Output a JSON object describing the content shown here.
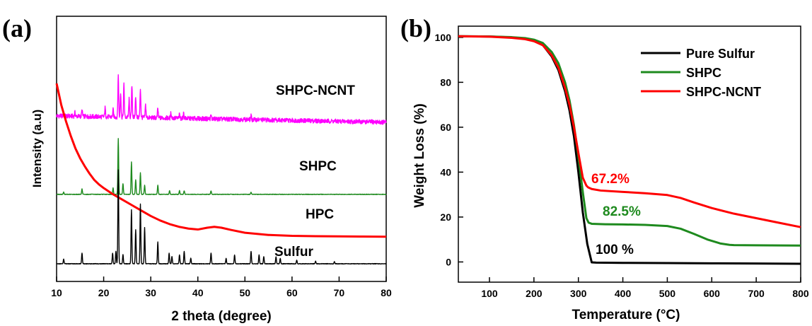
{
  "chart_data": [
    {
      "panel_label": "(a)",
      "type": "line",
      "xlabel": "2 theta (degree)",
      "ylabel": "Intensity (a.u)",
      "xlim": [
        10,
        80
      ],
      "x_ticks": [
        10,
        20,
        30,
        40,
        50,
        60,
        70,
        80
      ],
      "y_ticks_shown": false,
      "grid": false,
      "series": [
        {
          "name": "SHPC-NCNT",
          "color": "#ff00ff",
          "baseline": 0.82,
          "decay": 0.0005,
          "noise": 0.0125,
          "peaks": [
            [
              11.5,
              0.015
            ],
            [
              13.9,
              0.02
            ],
            [
              15.4,
              0.035
            ],
            [
              20.3,
              0.05
            ],
            [
              22.0,
              0.04
            ],
            [
              23.1,
              0.23
            ],
            [
              23.6,
              0.14
            ],
            [
              24.3,
              0.18
            ],
            [
              25.4,
              0.1
            ],
            [
              26.0,
              0.18
            ],
            [
              26.8,
              0.12
            ],
            [
              27.8,
              0.16
            ],
            [
              28.9,
              0.07
            ],
            [
              31.5,
              0.05
            ],
            [
              34.3,
              0.03
            ],
            [
              36.1,
              0.02
            ],
            [
              37.0,
              0.03
            ],
            [
              42.8,
              0.02
            ],
            [
              51.3,
              0.02
            ],
            [
              56.5,
              0.015
            ]
          ]
        },
        {
          "name": "SHPC",
          "color": "#1e8a1e",
          "baseline": 0.385,
          "decay": 0,
          "noise": 0.0015,
          "peaks": [
            [
              11.5,
              0.012
            ],
            [
              15.4,
              0.03
            ],
            [
              22.0,
              0.035
            ],
            [
              23.1,
              0.31
            ],
            [
              24.1,
              0.06
            ],
            [
              25.9,
              0.18
            ],
            [
              26.8,
              0.08
            ],
            [
              27.8,
              0.12
            ],
            [
              28.7,
              0.05
            ],
            [
              31.5,
              0.05
            ],
            [
              34.0,
              0.02
            ],
            [
              36.1,
              0.02
            ],
            [
              37.1,
              0.02
            ],
            [
              42.8,
              0.02
            ],
            [
              51.3,
              0.012
            ]
          ]
        },
        {
          "name": "HPC",
          "color": "#ff0000",
          "x": [
            10,
            11,
            12,
            13,
            14,
            15,
            16,
            17,
            18,
            19,
            20,
            22,
            24,
            26,
            28,
            30,
            32,
            34,
            36,
            38,
            40,
            42,
            43.5,
            45,
            47,
            50,
            55,
            60,
            65,
            70,
            75,
            80
          ],
          "y": [
            1.0,
            0.88,
            0.79,
            0.71,
            0.64,
            0.585,
            0.54,
            0.5,
            0.465,
            0.44,
            0.42,
            0.385,
            0.355,
            0.325,
            0.295,
            0.265,
            0.24,
            0.22,
            0.205,
            0.195,
            0.19,
            0.2,
            0.205,
            0.2,
            0.188,
            0.172,
            0.16,
            0.155,
            0.153,
            0.152,
            0.151,
            0.15
          ]
        },
        {
          "name": "Sulfur",
          "color": "#000000",
          "baseline": 0.0,
          "decay": 0,
          "noise": 0.0015,
          "peaks": [
            [
              11.5,
              0.025
            ],
            [
              15.4,
              0.06
            ],
            [
              21.9,
              0.06
            ],
            [
              22.6,
              0.07
            ],
            [
              23.1,
              0.52
            ],
            [
              24.1,
              0.05
            ],
            [
              25.9,
              0.3
            ],
            [
              26.8,
              0.19
            ],
            [
              27.8,
              0.33
            ],
            [
              28.7,
              0.2
            ],
            [
              31.5,
              0.12
            ],
            [
              33.9,
              0.06
            ],
            [
              34.5,
              0.04
            ],
            [
              36.1,
              0.05
            ],
            [
              37.1,
              0.07
            ],
            [
              38.5,
              0.03
            ],
            [
              42.8,
              0.06
            ],
            [
              46.0,
              0.03
            ],
            [
              47.8,
              0.05
            ],
            [
              51.3,
              0.07
            ],
            [
              53.0,
              0.05
            ],
            [
              54.0,
              0.04
            ],
            [
              56.6,
              0.04
            ],
            [
              57.5,
              0.03
            ],
            [
              61.0,
              0.02
            ],
            [
              65.0,
              0.015
            ],
            [
              69.0,
              0.012
            ]
          ]
        }
      ],
      "annotations": [
        "SHPC-NCNT",
        "SHPC",
        "HPC",
        "Sulfur"
      ]
    },
    {
      "panel_label": "(b)",
      "type": "line",
      "xlabel": "Temperature (°C)",
      "ylabel": "Weight Loss (%)",
      "xlim": [
        30,
        800
      ],
      "ylim": [
        -9,
        105
      ],
      "x_ticks": [
        100,
        200,
        300,
        400,
        500,
        600,
        700,
        800
      ],
      "y_ticks": [
        0,
        20,
        40,
        60,
        80,
        100
      ],
      "grid": false,
      "legend_position": "top-right",
      "series": [
        {
          "name": "Pure Sulfur",
          "color": "#000000",
          "x": [
            30,
            100,
            150,
            180,
            200,
            220,
            240,
            255,
            270,
            280,
            290,
            300,
            310,
            320,
            330,
            340,
            400,
            500,
            600,
            700,
            800
          ],
          "y": [
            100.5,
            100.4,
            100.0,
            99.5,
            98.6,
            96.6,
            91.5,
            85.5,
            76.0,
            67.5,
            56.0,
            40.0,
            22.0,
            8.0,
            -0.2,
            -0.3,
            -0.4,
            -0.5,
            -0.6,
            -0.7,
            -0.8
          ]
        },
        {
          "name": "SHPC",
          "color": "#1e8a1e",
          "x": [
            30,
            100,
            150,
            180,
            200,
            220,
            240,
            255,
            270,
            280,
            290,
            300,
            310,
            318,
            323,
            330,
            360,
            400,
            450,
            500,
            530,
            560,
            590,
            620,
            640,
            650,
            700,
            800
          ],
          "y": [
            100.5,
            100.4,
            100.1,
            99.7,
            99.0,
            97.5,
            93.5,
            88.5,
            80.0,
            72.0,
            61.0,
            47.0,
            31.0,
            19.5,
            17.5,
            17.0,
            16.8,
            16.7,
            16.5,
            16.0,
            14.8,
            12.5,
            10.0,
            8.2,
            7.6,
            7.5,
            7.4,
            7.3
          ]
        },
        {
          "name": "SHPC-NCNT",
          "color": "#ff0000",
          "x": [
            30,
            100,
            150,
            180,
            200,
            220,
            240,
            255,
            270,
            280,
            290,
            300,
            310,
            318,
            322,
            330,
            350,
            400,
            450,
            500,
            530,
            560,
            600,
            650,
            700,
            750,
            800
          ],
          "y": [
            100.5,
            100.3,
            99.8,
            99.2,
            98.3,
            96.5,
            92.0,
            86.5,
            77.5,
            70.0,
            60.0,
            48.5,
            37.5,
            34.0,
            33.2,
            32.5,
            31.8,
            31.2,
            30.6,
            29.8,
            28.5,
            26.5,
            24.0,
            21.5,
            19.5,
            17.5,
            15.5
          ]
        }
      ],
      "annotations": [
        "67.2%",
        "82.5%",
        "100 %"
      ]
    }
  ]
}
